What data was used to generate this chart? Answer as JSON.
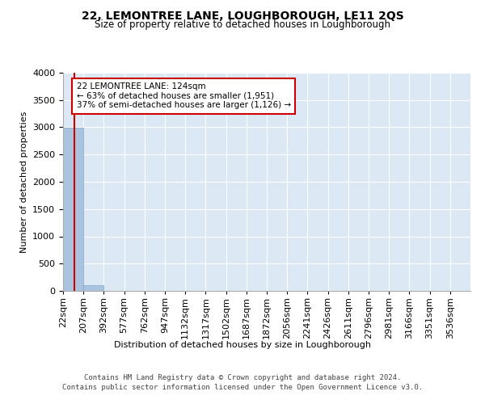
{
  "title": "22, LEMONTREE LANE, LOUGHBOROUGH, LE11 2QS",
  "subtitle": "Size of property relative to detached houses in Loughborough",
  "xlabel": "Distribution of detached houses by size in Loughborough",
  "ylabel": "Number of detached properties",
  "footer_line1": "Contains HM Land Registry data © Crown copyright and database right 2024.",
  "footer_line2": "Contains public sector information licensed under the Open Government Licence v3.0.",
  "bin_edges": [
    22,
    207,
    392,
    577,
    762,
    947,
    1132,
    1317,
    1502,
    1687,
    1872,
    2056,
    2241,
    2426,
    2611,
    2796,
    2981,
    3166,
    3351,
    3536,
    3721
  ],
  "bar_heights": [
    2990,
    110,
    0,
    0,
    0,
    0,
    0,
    0,
    0,
    0,
    0,
    0,
    0,
    0,
    0,
    0,
    0,
    0,
    0,
    0
  ],
  "bar_color": "#aac4e0",
  "bar_edgecolor": "#7aaac8",
  "property_size_sqm": 124,
  "red_line_x": 124,
  "annotation_text": "22 LEMONTREE LANE: 124sqm\n← 63% of detached houses are smaller (1,951)\n37% of semi-detached houses are larger (1,126) →",
  "annotation_box_color": "#ffffff",
  "annotation_box_edgecolor": "#cc0000",
  "annotation_text_fontsize": 7.5,
  "ylim": [
    0,
    4000
  ],
  "yticks": [
    0,
    500,
    1000,
    1500,
    2000,
    2500,
    3000,
    3500,
    4000
  ],
  "tick_label_fontsize": 8,
  "background_color": "#dce9f5",
  "grid_color": "#ffffff",
  "title_fontsize": 10,
  "subtitle_fontsize": 8.5,
  "xlabel_fontsize": 8,
  "ylabel_fontsize": 8
}
